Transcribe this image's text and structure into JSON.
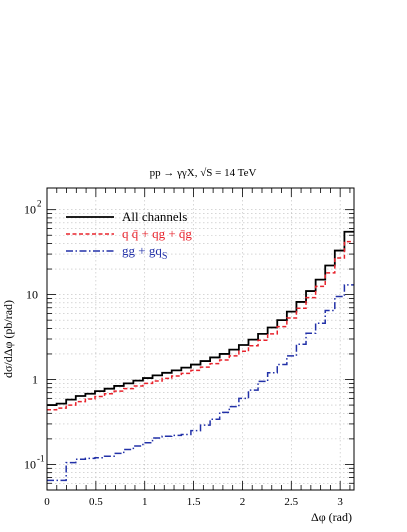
{
  "chart_data": {
    "type": "line",
    "title": "pp → γγX, √S = 14 TeV",
    "xlabel": "Δφ (rad)",
    "ylabel": "dσ/dΔφ (pb/rad)",
    "xlim": [
      0,
      3.1416
    ],
    "ylim": [
      0.05,
      180
    ],
    "y_scale": "log",
    "grid": true,
    "legend_position": "top-left",
    "x_ticks": [
      {
        "value": 0,
        "label": "0"
      },
      {
        "value": 0.5,
        "label": "0.5"
      },
      {
        "value": 1,
        "label": "1"
      },
      {
        "value": 1.5,
        "label": "1.5"
      },
      {
        "value": 2,
        "label": "2"
      },
      {
        "value": 2.5,
        "label": "2.5"
      },
      {
        "value": 3,
        "label": "3"
      }
    ],
    "y_ticks": [
      {
        "value": 0.1,
        "base": "10",
        "exp": "-1"
      },
      {
        "value": 1,
        "base": "1",
        "exp": ""
      },
      {
        "value": 10,
        "base": "10",
        "exp": ""
      },
      {
        "value": 100,
        "base": "10",
        "exp": "2"
      }
    ],
    "x_edges": [
      0,
      0.0982,
      0.1963,
      0.2945,
      0.3927,
      0.4909,
      0.589,
      0.6872,
      0.7854,
      0.8836,
      0.9817,
      1.0799,
      1.1781,
      1.2763,
      1.3744,
      1.4726,
      1.5708,
      1.669,
      1.7671,
      1.8653,
      1.9635,
      2.0617,
      2.1598,
      2.258,
      2.3562,
      2.4544,
      2.5525,
      2.6507,
      2.7489,
      2.8471,
      2.9452,
      3.0434,
      3.1416
    ],
    "series": [
      {
        "name": "All channels",
        "color": "#000000",
        "dash": "solid",
        "values": [
          0.5,
          0.52,
          0.58,
          0.64,
          0.68,
          0.73,
          0.78,
          0.84,
          0.9,
          0.97,
          1.04,
          1.12,
          1.2,
          1.28,
          1.38,
          1.5,
          1.65,
          1.82,
          2.0,
          2.25,
          2.55,
          2.95,
          3.45,
          4.1,
          5.0,
          6.3,
          8.2,
          11.0,
          15.0,
          22.0,
          33.0,
          55.0,
          90.0
        ]
      },
      {
        "name": "q q̄ + qg + q̄g",
        "name_parts": [
          "q",
          "q̄",
          " + qg + ",
          "q̄",
          "g"
        ],
        "color": "#e8232c",
        "dash": "dashed",
        "values": [
          0.44,
          0.46,
          0.5,
          0.55,
          0.59,
          0.63,
          0.68,
          0.73,
          0.78,
          0.84,
          0.9,
          0.96,
          1.03,
          1.1,
          1.18,
          1.28,
          1.4,
          1.54,
          1.7,
          1.9,
          2.15,
          2.5,
          2.9,
          3.45,
          4.2,
          5.3,
          6.9,
          9.2,
          12.5,
          18.0,
          27.0,
          42.0,
          65.0
        ]
      },
      {
        "name": "gg + gqS",
        "name_parts": [
          "gg + gq",
          "S"
        ],
        "color": "#2231a8",
        "dash": "dashdot",
        "values": [
          0.065,
          0.065,
          0.105,
          0.115,
          0.118,
          0.12,
          0.125,
          0.135,
          0.15,
          0.165,
          0.18,
          0.205,
          0.215,
          0.22,
          0.225,
          0.25,
          0.29,
          0.34,
          0.41,
          0.48,
          0.6,
          0.75,
          0.95,
          1.2,
          1.5,
          1.9,
          2.6,
          3.5,
          4.6,
          6.5,
          9.5,
          13.0,
          16.5
        ]
      }
    ]
  }
}
